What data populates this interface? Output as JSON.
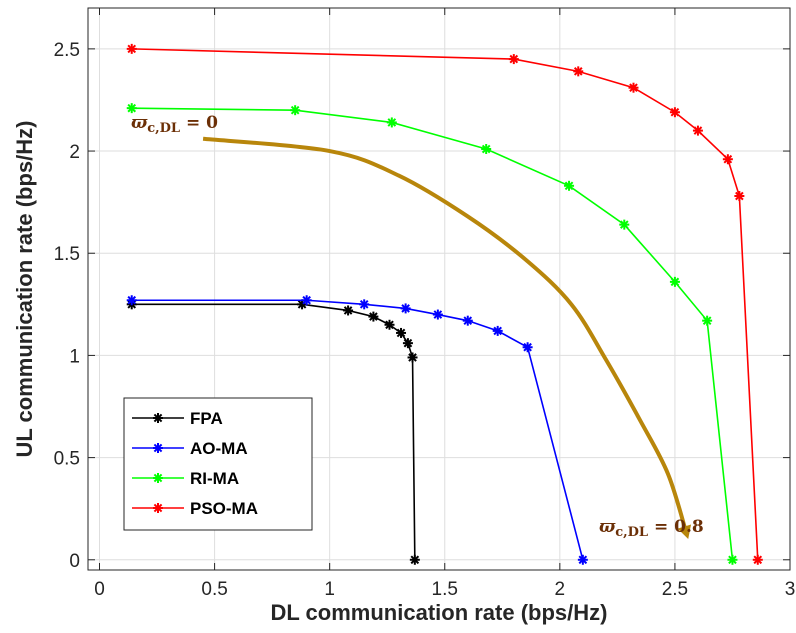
{
  "chart_data": {
    "type": "line",
    "xlabel": "DL communication rate (bps/Hz)",
    "ylabel": "UL communication rate (bps/Hz)",
    "xlim": [
      -0.05,
      3
    ],
    "ylim": [
      -0.05,
      2.7
    ],
    "xticks": [
      0,
      0.5,
      1,
      1.5,
      2,
      2.5,
      3
    ],
    "xtick_labels": [
      "0",
      "0.5",
      "1",
      "1.5",
      "2",
      "2.5",
      "3"
    ],
    "yticks": [
      0,
      0.5,
      1,
      1.5,
      2,
      2.5
    ],
    "ytick_labels": [
      "0",
      "0.5",
      "1",
      "1.5",
      "2",
      "2.5"
    ],
    "grid": true,
    "legend_position": "bottom-left",
    "series": [
      {
        "name": "FPA",
        "color": "#000000",
        "x": [
          0.14,
          0.88,
          1.08,
          1.19,
          1.26,
          1.31,
          1.34,
          1.36,
          1.37
        ],
        "y": [
          1.25,
          1.25,
          1.22,
          1.19,
          1.15,
          1.11,
          1.06,
          0.99,
          0.0
        ]
      },
      {
        "name": "AO-MA",
        "color": "#0000ff",
        "x": [
          0.14,
          0.9,
          1.15,
          1.33,
          1.47,
          1.6,
          1.73,
          1.86,
          2.1
        ],
        "y": [
          1.27,
          1.27,
          1.25,
          1.23,
          1.2,
          1.17,
          1.12,
          1.04,
          0.0
        ]
      },
      {
        "name": "RI-MA",
        "color": "#00ff00",
        "x": [
          0.14,
          0.85,
          1.27,
          1.68,
          2.04,
          2.28,
          2.5,
          2.64,
          2.75
        ],
        "y": [
          2.21,
          2.2,
          2.14,
          2.01,
          1.83,
          1.64,
          1.36,
          1.17,
          0.0
        ]
      },
      {
        "name": "PSO-MA",
        "color": "#ff0000",
        "x": [
          0.14,
          1.8,
          2.08,
          2.32,
          2.5,
          2.6,
          2.73,
          2.78,
          2.86
        ],
        "y": [
          2.5,
          2.45,
          2.39,
          2.31,
          2.19,
          2.1,
          1.96,
          1.78,
          0.0
        ]
      }
    ],
    "annotation_arrow": {
      "color": "#b8860b",
      "x": [
        0.45,
        1.0,
        1.3,
        1.6,
        1.85,
        2.05,
        2.2,
        2.35,
        2.47,
        2.55
      ],
      "y": [
        2.06,
        2.0,
        1.88,
        1.68,
        1.47,
        1.25,
        0.98,
        0.68,
        0.42,
        0.13
      ]
    },
    "annotations": [
      {
        "id": "start",
        "text": "ϖ",
        "sub": "c,DL",
        "suffix": " = 0"
      },
      {
        "id": "end",
        "text": "ϖ",
        "sub": "c,DL",
        "suffix": " = 0.8"
      }
    ]
  }
}
